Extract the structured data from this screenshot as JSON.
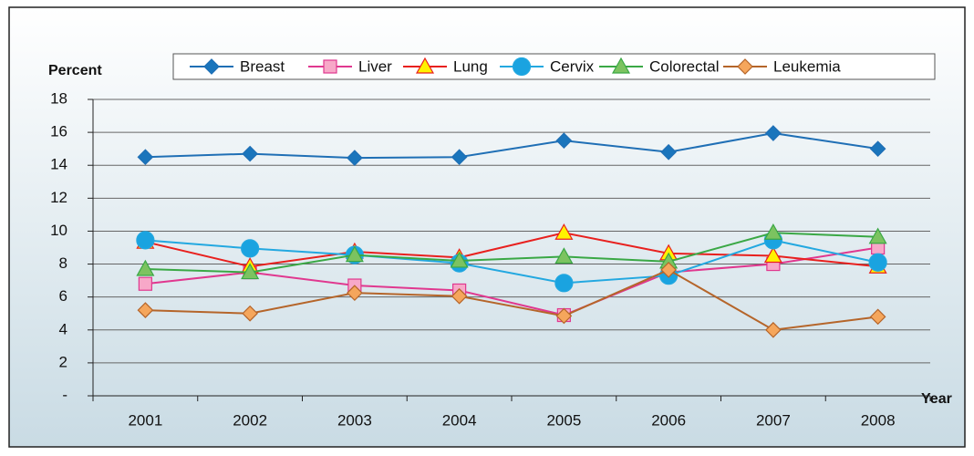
{
  "chart_data": {
    "type": "line",
    "ylabel": "Percent",
    "xlabel": "Year",
    "categories": [
      "2001",
      "2002",
      "2003",
      "2004",
      "2005",
      "2006",
      "2007",
      "2008"
    ],
    "ylim": [
      0,
      18
    ],
    "yticks": [
      {
        "value": 0,
        "label": "-"
      },
      2,
      4,
      6,
      8,
      10,
      12,
      14,
      16,
      18
    ],
    "grid": true,
    "legend": "top",
    "series": [
      {
        "name": "Breast",
        "color": "#1f6fb5",
        "marker": "diamond",
        "marker_color": "#1a75bc",
        "values": [
          14.5,
          14.7,
          14.45,
          14.5,
          15.5,
          14.8,
          15.95,
          15.0
        ]
      },
      {
        "name": "Liver",
        "color": "#e0388f",
        "marker": "square",
        "marker_color": "#f7a8c8",
        "values": [
          6.8,
          7.5,
          6.7,
          6.4,
          4.9,
          7.5,
          8.0,
          9.0
        ]
      },
      {
        "name": "Lung",
        "color": "#e8201e",
        "marker": "triangle",
        "marker_color": "#fff200",
        "values": [
          9.35,
          7.85,
          8.75,
          8.4,
          9.9,
          8.65,
          8.5,
          7.85
        ]
      },
      {
        "name": "Cervix",
        "color": "#23a8e0",
        "marker": "circle",
        "marker_color": "#1aa3e0",
        "values": [
          9.45,
          8.95,
          8.55,
          8.05,
          6.85,
          7.3,
          9.45,
          8.1
        ]
      },
      {
        "name": "Colorectal",
        "color": "#3aa845",
        "marker": "triangle",
        "marker_color": "#7cc360",
        "values": [
          7.7,
          7.5,
          8.55,
          8.2,
          8.45,
          8.15,
          9.9,
          9.65
        ]
      },
      {
        "name": "Leukemia",
        "color": "#b5652a",
        "marker": "diamond",
        "marker_color": "#f5a65c",
        "values": [
          5.2,
          5.0,
          6.25,
          6.05,
          4.85,
          7.65,
          4.0,
          4.8
        ]
      }
    ]
  }
}
